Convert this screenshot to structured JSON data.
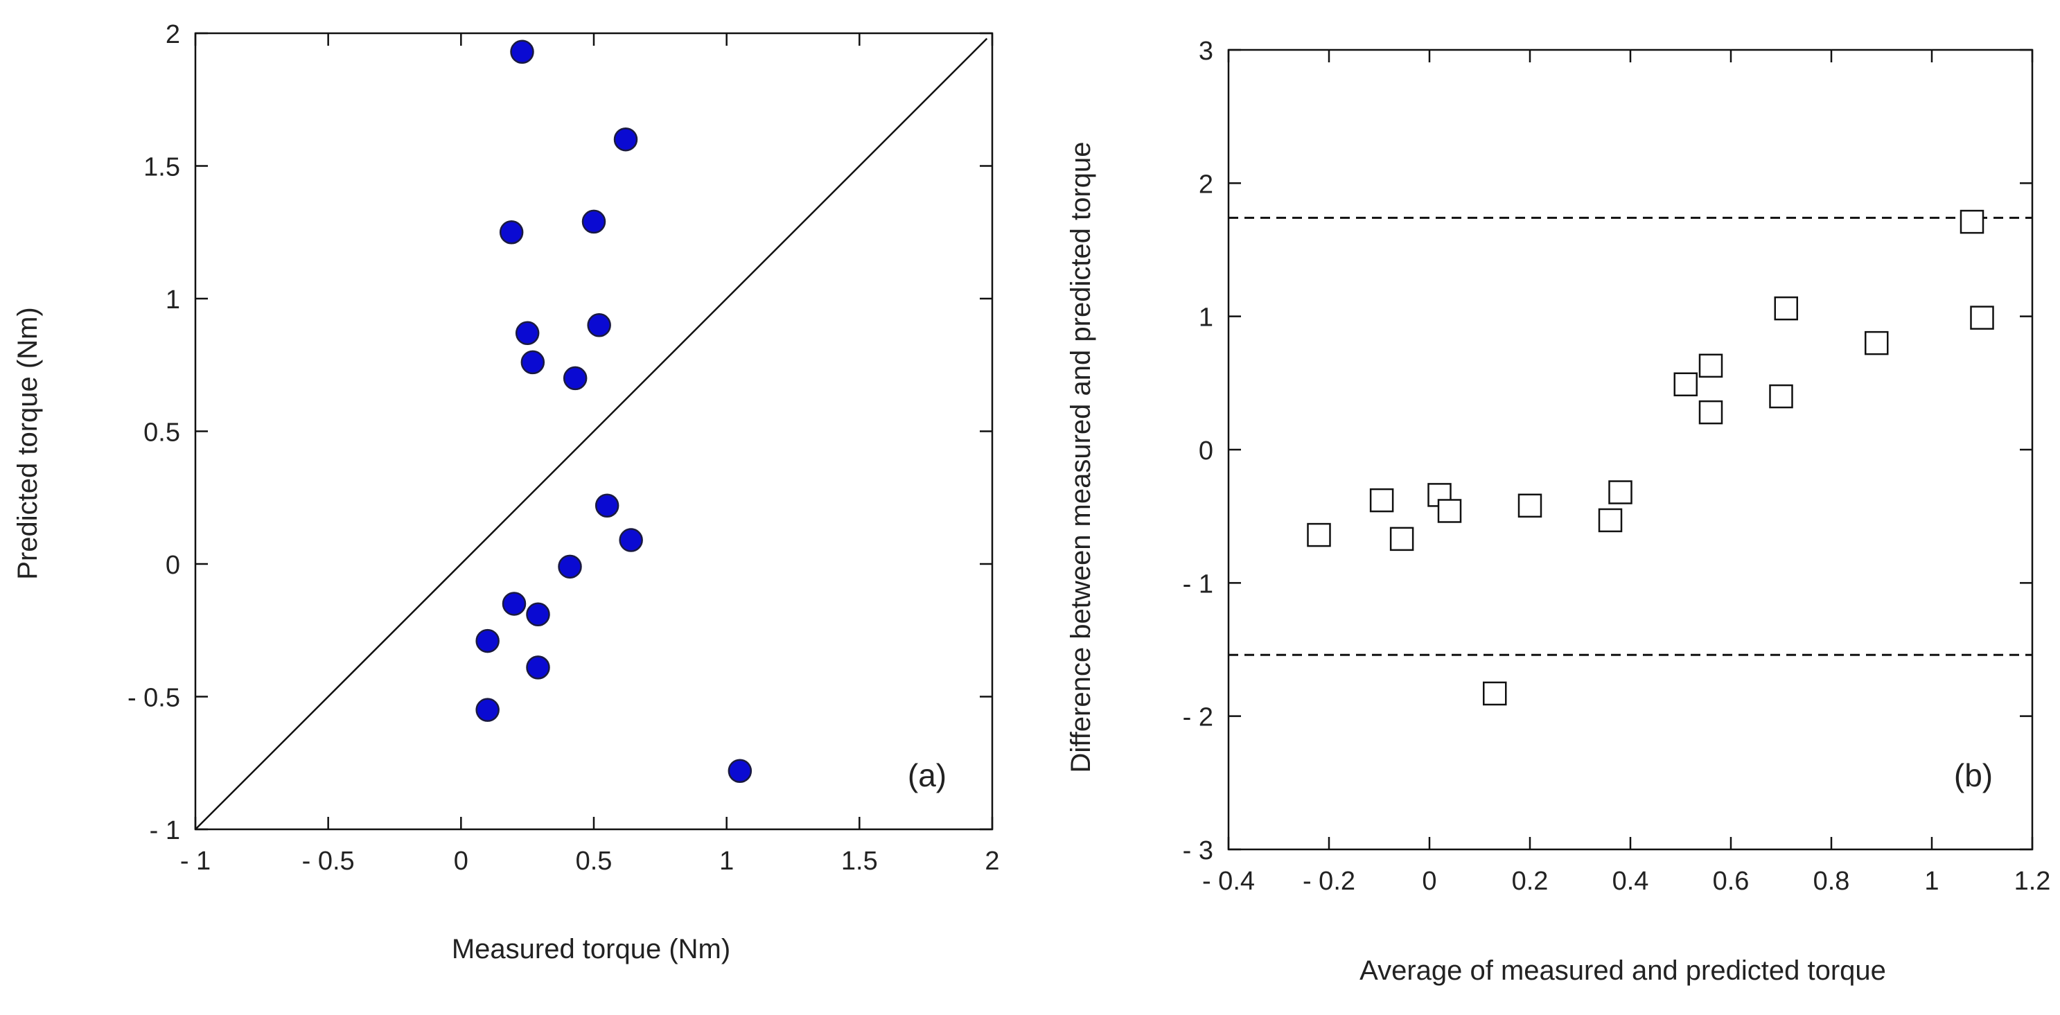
{
  "chart_data": [
    {
      "type": "scatter",
      "panel_label": "(a)",
      "xlabel": "Measured torque (Nm)",
      "ylabel": "Predicted torque (Nm)",
      "xlim": [
        -1,
        2
      ],
      "ylim": [
        -1,
        2
      ],
      "xticks": [
        -1,
        -0.5,
        0,
        0.5,
        1,
        1.5,
        2
      ],
      "xtick_labels": [
        "- 1",
        "- 0.5",
        "0",
        "0.5",
        "1",
        "1.5",
        "2"
      ],
      "yticks": [
        -1,
        -0.5,
        0,
        0.5,
        1,
        1.5,
        2
      ],
      "ytick_labels": [
        "- 1",
        "- 0.5",
        "0",
        "0.5",
        "1",
        "1.5",
        "2"
      ],
      "reference_line": {
        "from": [
          -1,
          -1
        ],
        "to": [
          1.98,
          1.98
        ],
        "label": "identity line"
      },
      "marker": {
        "shape": "circle",
        "fill": "#0a0ad2",
        "stroke": "#1a1a40"
      },
      "points": [
        {
          "x": 0.23,
          "y": 1.93
        },
        {
          "x": 0.62,
          "y": 1.6
        },
        {
          "x": 0.19,
          "y": 1.25
        },
        {
          "x": 0.5,
          "y": 1.29
        },
        {
          "x": 0.25,
          "y": 0.87
        },
        {
          "x": 0.52,
          "y": 0.9
        },
        {
          "x": 0.27,
          "y": 0.76
        },
        {
          "x": 0.43,
          "y": 0.7
        },
        {
          "x": 0.55,
          "y": 0.22
        },
        {
          "x": 0.64,
          "y": 0.09
        },
        {
          "x": 0.41,
          "y": -0.01
        },
        {
          "x": 0.2,
          "y": -0.15
        },
        {
          "x": 0.29,
          "y": -0.19
        },
        {
          "x": 0.1,
          "y": -0.29
        },
        {
          "x": 0.29,
          "y": -0.39
        },
        {
          "x": 0.1,
          "y": -0.55
        },
        {
          "x": 1.05,
          "y": -0.78
        }
      ]
    },
    {
      "type": "scatter",
      "panel_label": "(b)",
      "xlabel": "Average of measured and predicted torque",
      "ylabel": "Difference between measured and predicted torque",
      "xlim": [
        -0.4,
        1.2
      ],
      "ylim": [
        -3,
        3
      ],
      "xticks": [
        -0.4,
        -0.2,
        0,
        0.2,
        0.4,
        0.6,
        0.8,
        1,
        1.2
      ],
      "xtick_labels": [
        "- 0.4",
        "- 0.2",
        "0",
        "0.2",
        "0.4",
        "0.6",
        "0.8",
        "1",
        "1.2"
      ],
      "yticks": [
        -3,
        -2,
        -1,
        0,
        1,
        2,
        3
      ],
      "ytick_labels": [
        "- 3",
        "- 2",
        "- 1",
        "0",
        "1",
        "2",
        "3"
      ],
      "limits_of_agreement": [
        1.74,
        -1.54
      ],
      "marker": {
        "shape": "square",
        "fill": "#ffffff",
        "stroke": "#111111"
      },
      "points": [
        {
          "x": -0.22,
          "y": -0.64
        },
        {
          "x": -0.095,
          "y": -0.38
        },
        {
          "x": -0.055,
          "y": -0.67
        },
        {
          "x": 0.02,
          "y": -0.34
        },
        {
          "x": 0.04,
          "y": -0.46
        },
        {
          "x": 0.2,
          "y": -0.42
        },
        {
          "x": 0.36,
          "y": -0.53
        },
        {
          "x": 0.38,
          "y": -0.32
        },
        {
          "x": 0.51,
          "y": 0.49
        },
        {
          "x": 0.56,
          "y": 0.63
        },
        {
          "x": 0.56,
          "y": 0.28
        },
        {
          "x": 0.7,
          "y": 0.4
        },
        {
          "x": 0.71,
          "y": 1.06
        },
        {
          "x": 0.89,
          "y": 0.8
        },
        {
          "x": 1.08,
          "y": 1.71
        },
        {
          "x": 1.1,
          "y": 0.99
        },
        {
          "x": 0.13,
          "y": -1.83
        }
      ]
    }
  ]
}
